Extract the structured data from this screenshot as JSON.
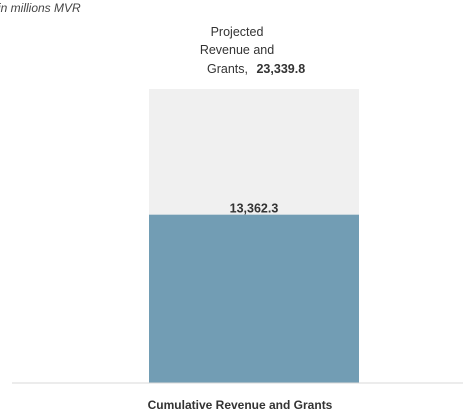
{
  "chart_data": {
    "type": "bar",
    "subtitle": "in millions MVR",
    "categories": [
      "Cumulative Revenue and Grants"
    ],
    "series": [
      {
        "name": "Projected Revenue and Grants",
        "values": [
          23339.8
        ],
        "color": "#f0f0f0"
      },
      {
        "values": [
          13362.3
        ],
        "color": "#729db4"
      }
    ],
    "annotation": {
      "lines": [
        "Projected",
        "Revenue and",
        "Grants,"
      ],
      "value": "23,339.8"
    },
    "data_labels": [
      "13,362.3"
    ],
    "ylim": [
      0,
      23339.8
    ],
    "grid": false,
    "legend": "none"
  }
}
